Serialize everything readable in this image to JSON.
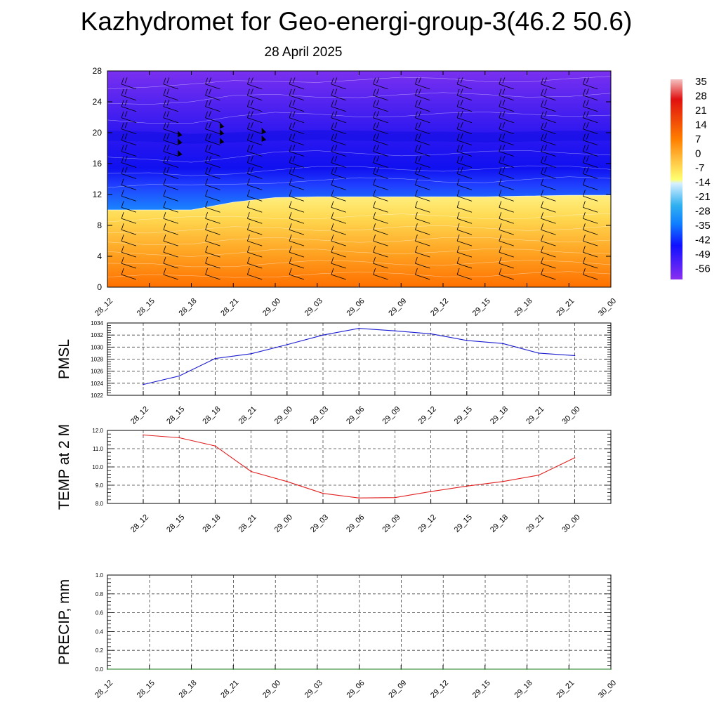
{
  "title": "Kazhydromet for Geo-energi-group-3(46.2 50.6)",
  "subtitle": "28 April 2025",
  "colors": {
    "pmsl_line": "#1a1ad0",
    "temp_line": "#e02020",
    "precip_line": "#1f7a1f",
    "colorbar_top": "#f0a0a0",
    "colorbar_warm": "#ff7f00",
    "colorbar_zero": "#ffff60",
    "colorbar_cold": "#30b0f0",
    "colorbar_bottom": "#7a30f0"
  },
  "chart_data": [
    {
      "id": "cross_section",
      "type": "heatmap",
      "x_ticks": [
        "28_12",
        "28_15",
        "28_18",
        "28_21",
        "29_00",
        "29_03",
        "29_06",
        "29_09",
        "29_12",
        "29_15",
        "29_18",
        "29_21",
        "30_00"
      ],
      "ylim": [
        0,
        28
      ],
      "y_ticks": [
        "0",
        "4",
        "8",
        "12",
        "16",
        "20",
        "24",
        "28"
      ],
      "colorbar": {
        "labels": [
          "35",
          "28",
          "21",
          "14",
          "7",
          "0",
          "-7",
          "-14",
          "-21",
          "-28",
          "-35",
          "-42",
          "-49",
          "-56"
        ],
        "range": [
          -60,
          38
        ]
      },
      "freezing_level": [
        10,
        10,
        10,
        11,
        11.6,
        11.7,
        11.7,
        11.7,
        11.7,
        11.7,
        11.8,
        11.9,
        11.9
      ],
      "tropopause_level": [
        19.6,
        19.5,
        19.2,
        19.4,
        19.6,
        19.7,
        19.6,
        19.5,
        19.5,
        19.4,
        19.5,
        19.6,
        19.6
      ]
    },
    {
      "id": "pmsl",
      "type": "line",
      "ylabel": "PMSL",
      "x": [
        "28_12",
        "28_15",
        "28_18",
        "28_21",
        "29_00",
        "29_03",
        "29_06",
        "29_09",
        "29_12",
        "29_15",
        "29_18",
        "29_21",
        "30_00"
      ],
      "ylim": [
        1022,
        1034
      ],
      "y_ticks": [
        "1022",
        "1024",
        "1026",
        "1028",
        "1030",
        "1032",
        "1034"
      ],
      "series": [
        {
          "values": [
            1023.8,
            1025.2,
            1028.1,
            1028.9,
            1030.4,
            1032.0,
            1033.1,
            1032.7,
            1032.2,
            1031.1,
            1030.6,
            1029.0,
            1028.6
          ]
        }
      ]
    },
    {
      "id": "temp",
      "type": "line",
      "ylabel": "TEMP at 2 M",
      "x": [
        "28_12",
        "28_15",
        "28_18",
        "28_21",
        "29_00",
        "29_03",
        "29_06",
        "29_09",
        "29_12",
        "29_15",
        "29_18",
        "29_21",
        "30_00"
      ],
      "ylim": [
        8.0,
        12.0
      ],
      "y_ticks": [
        "8.0",
        "9.0",
        "10.0",
        "11.0",
        "12.0"
      ],
      "series": [
        {
          "values": [
            11.75,
            11.6,
            11.15,
            9.75,
            9.2,
            8.55,
            8.3,
            8.32,
            8.65,
            8.95,
            9.2,
            9.55,
            10.5
          ]
        }
      ]
    },
    {
      "id": "precip",
      "type": "line",
      "ylabel": "PRECIP, mm",
      "x": [
        "28_12",
        "28_15",
        "28_18",
        "28_21",
        "29_00",
        "29_03",
        "29_06",
        "29_09",
        "29_12",
        "29_15",
        "29_18",
        "29_21",
        "30_00"
      ],
      "ylim": [
        0.0,
        1.0
      ],
      "y_ticks": [
        "0.0",
        "0.2",
        "0.4",
        "0.6",
        "0.8",
        "1.0"
      ],
      "series": [
        {
          "values": [
            0,
            0,
            0,
            0,
            0,
            0,
            0,
            0,
            0,
            0,
            0,
            0,
            0
          ]
        }
      ]
    }
  ]
}
